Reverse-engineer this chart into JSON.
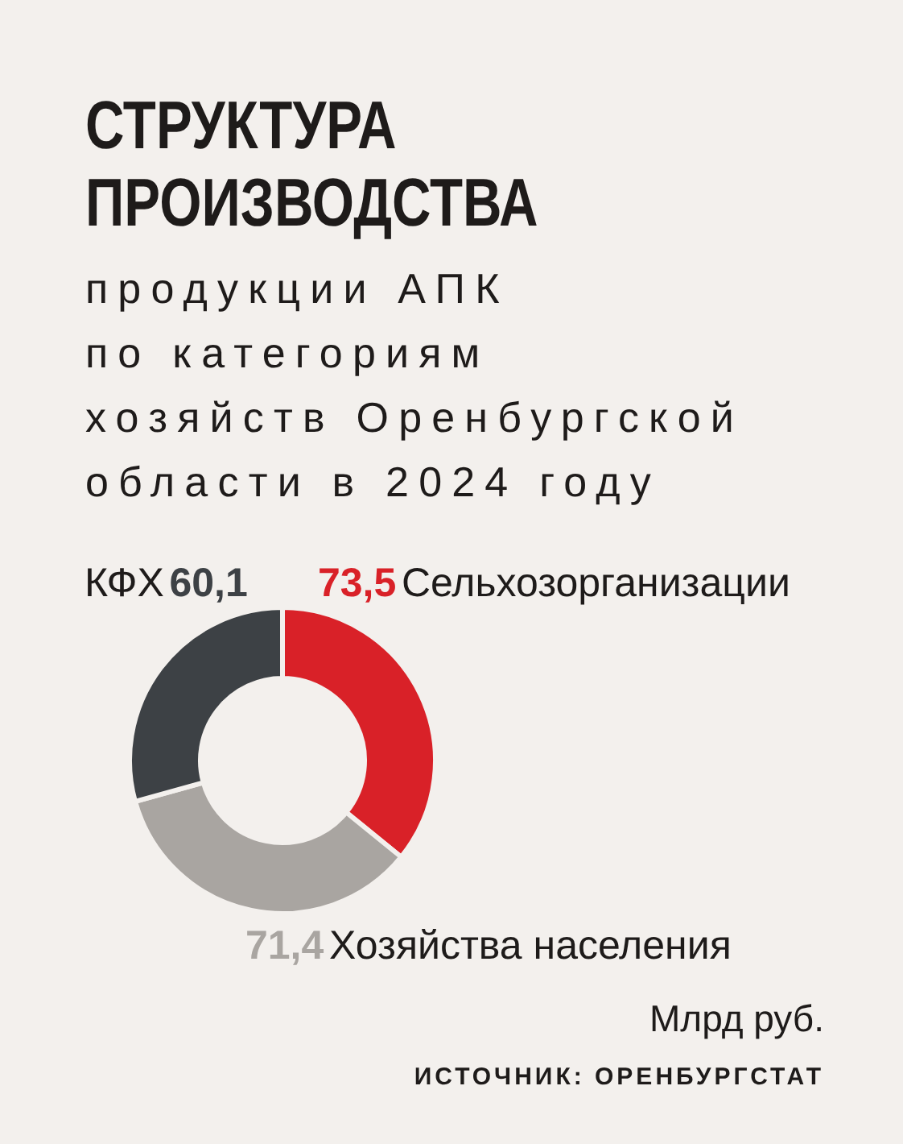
{
  "chart_data": {
    "type": "donut",
    "title": "СТРУКТУРА\nПРОИЗВОДСТВА",
    "subtitle": "продукции АПК\nпо категориям\nхозяйств Оренбургской\nобласти в 2024 году",
    "categories": [
      "Сельхозорганизации",
      "Хозяйства населения",
      "КФХ"
    ],
    "values": [
      73.5,
      71.4,
      60.1
    ],
    "value_labels": [
      "73,5",
      "71,4",
      "60,1"
    ],
    "colors": [
      "#d92128",
      "#a9a5a1",
      "#3d4145"
    ],
    "annotations": [
      "Млрд руб.",
      "ИСТОЧНИК: ОРЕНБУРГСТАТ"
    ]
  }
}
